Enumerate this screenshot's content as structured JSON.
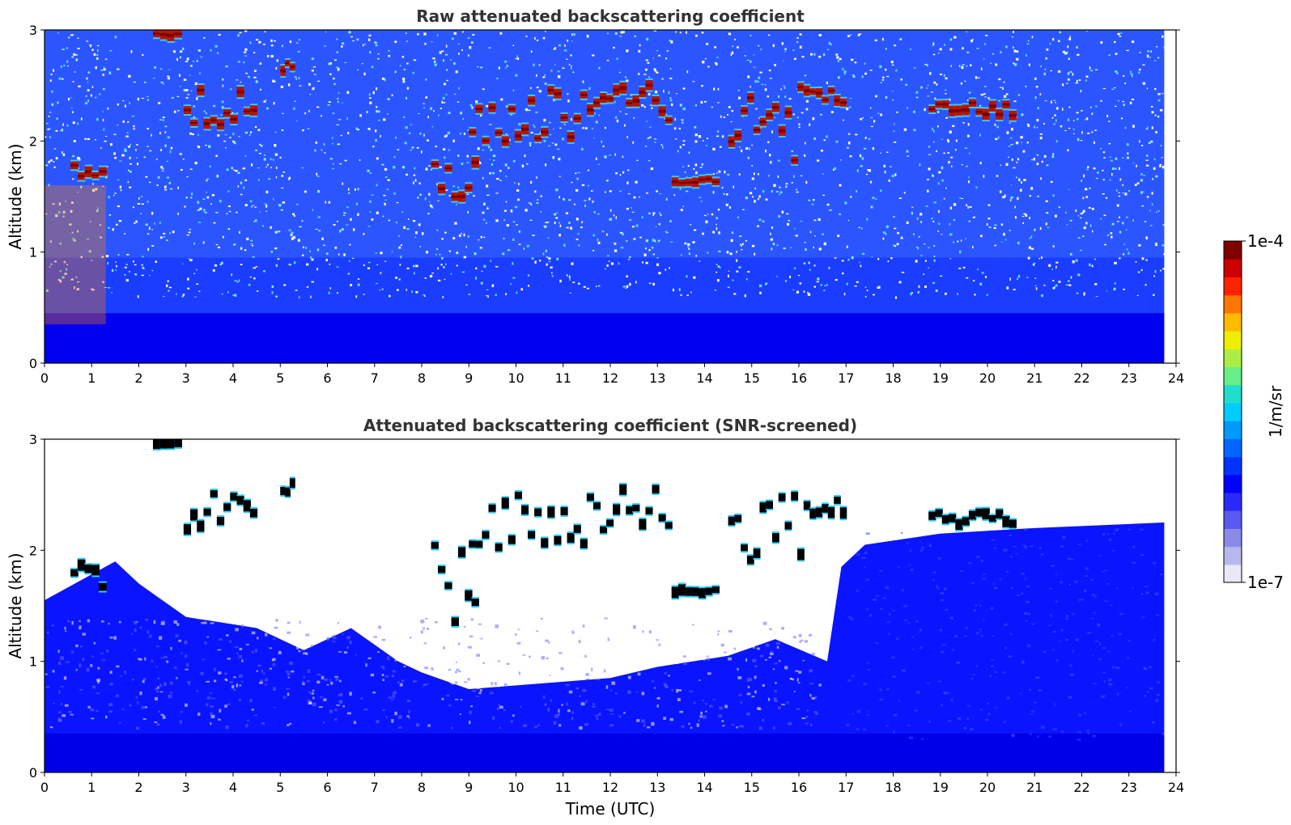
{
  "chart_data": [
    {
      "type": "heatmap",
      "title": "Raw attenuated backscattering coefficient",
      "xlabel": "",
      "ylabel": "Altitude (km)",
      "xlim": [
        0,
        24
      ],
      "ylim": [
        0,
        3
      ],
      "x_ticks": [
        "0",
        "1",
        "2",
        "3",
        "4",
        "5",
        "6",
        "7",
        "8",
        "9",
        "10",
        "11",
        "12",
        "13",
        "14",
        "15",
        "16",
        "17",
        "18",
        "19",
        "20",
        "21",
        "22",
        "23",
        "24"
      ],
      "y_ticks": [
        "0",
        "1",
        "2",
        "3"
      ],
      "data_end_time": 23.75,
      "dense_noise_top_km": 0.95,
      "features": [
        {
          "kind": "cloud",
          "t": [
            0.55,
            1.3
          ],
          "alt": [
            1.62,
            1.92
          ],
          "intensity": "high"
        },
        {
          "kind": "cloud",
          "t": [
            2.3,
            2.9
          ],
          "alt": [
            2.93,
            3.0
          ],
          "intensity": "high"
        },
        {
          "kind": "cloud",
          "t": [
            2.95,
            4.5
          ],
          "alt": [
            2.12,
            2.55
          ],
          "intensity": "high"
        },
        {
          "kind": "cloud",
          "t": [
            5.0,
            5.3
          ],
          "alt": [
            2.48,
            2.78
          ],
          "intensity": "high"
        },
        {
          "kind": "cloud",
          "t": [
            8.2,
            9.2
          ],
          "alt": [
            1.3,
            2.2
          ],
          "intensity": "high"
        },
        {
          "kind": "cloud",
          "t": [
            9.0,
            11.5
          ],
          "alt": [
            1.95,
            2.55
          ],
          "intensity": "high"
        },
        {
          "kind": "cloud",
          "t": [
            11.5,
            13.3
          ],
          "alt": [
            2.1,
            2.6
          ],
          "intensity": "high"
        },
        {
          "kind": "cloud",
          "t": [
            13.3,
            14.3
          ],
          "alt": [
            1.58,
            1.7
          ],
          "intensity": "high"
        },
        {
          "kind": "cloud",
          "t": [
            14.5,
            16.1
          ],
          "alt": [
            1.65,
            2.55
          ],
          "intensity": "high"
        },
        {
          "kind": "cloud",
          "t": [
            16.1,
            17.0
          ],
          "alt": [
            2.3,
            2.5
          ],
          "intensity": "high"
        },
        {
          "kind": "cloud",
          "t": [
            18.75,
            20.6
          ],
          "alt": [
            2.2,
            2.38
          ],
          "intensity": "high"
        },
        {
          "kind": "aerosol",
          "t": [
            0,
            1.3
          ],
          "alt": [
            0.35,
            1.6
          ],
          "intensity": "medium"
        }
      ]
    },
    {
      "type": "heatmap",
      "title": "Attenuated backscattering coefficient (SNR-screened)",
      "xlabel": "Time (UTC)",
      "ylabel": "Altitude (km)",
      "xlim": [
        0,
        24
      ],
      "ylim": [
        0,
        3
      ],
      "x_ticks": [
        "0",
        "1",
        "2",
        "3",
        "4",
        "5",
        "6",
        "7",
        "8",
        "9",
        "10",
        "11",
        "12",
        "13",
        "14",
        "15",
        "16",
        "17",
        "18",
        "19",
        "20",
        "21",
        "22",
        "23",
        "24"
      ],
      "y_ticks": [
        "0",
        "1",
        "2",
        "3"
      ],
      "data_end_time": 23.75,
      "screened_top_km": [
        [
          0,
          1.55
        ],
        [
          1.5,
          1.9
        ],
        [
          2.0,
          1.7
        ],
        [
          3.0,
          1.4
        ],
        [
          4.5,
          1.3
        ],
        [
          5.5,
          1.1
        ],
        [
          6.5,
          1.3
        ],
        [
          7.5,
          1.0
        ],
        [
          8.0,
          0.9
        ],
        [
          9.0,
          0.75
        ],
        [
          10.5,
          0.8
        ],
        [
          12.0,
          0.85
        ],
        [
          13.0,
          0.95
        ],
        [
          14.5,
          1.05
        ],
        [
          15.5,
          1.2
        ],
        [
          16.6,
          1.0
        ],
        [
          16.9,
          1.85
        ],
        [
          17.4,
          2.05
        ],
        [
          19.0,
          2.15
        ],
        [
          21.0,
          2.2
        ],
        [
          23.75,
          2.25
        ]
      ],
      "features": [
        {
          "kind": "cloud",
          "t": [
            0.55,
            1.3
          ],
          "alt": [
            1.62,
            1.92
          ],
          "intensity": "saturated"
        },
        {
          "kind": "cloud",
          "t": [
            2.3,
            2.9
          ],
          "alt": [
            2.93,
            3.0
          ],
          "intensity": "saturated"
        },
        {
          "kind": "cloud",
          "t": [
            2.95,
            4.5
          ],
          "alt": [
            2.12,
            2.55
          ],
          "intensity": "saturated"
        },
        {
          "kind": "cloud",
          "t": [
            5.0,
            5.3
          ],
          "alt": [
            2.48,
            2.78
          ],
          "intensity": "saturated"
        },
        {
          "kind": "cloud",
          "t": [
            8.2,
            9.2
          ],
          "alt": [
            1.3,
            2.2
          ],
          "intensity": "saturated"
        },
        {
          "kind": "cloud",
          "t": [
            9.0,
            11.5
          ],
          "alt": [
            1.95,
            2.55
          ],
          "intensity": "saturated"
        },
        {
          "kind": "cloud",
          "t": [
            11.5,
            13.3
          ],
          "alt": [
            2.1,
            2.6
          ],
          "intensity": "saturated"
        },
        {
          "kind": "cloud",
          "t": [
            13.3,
            14.3
          ],
          "alt": [
            1.58,
            1.7
          ],
          "intensity": "saturated"
        },
        {
          "kind": "cloud",
          "t": [
            14.5,
            16.1
          ],
          "alt": [
            1.65,
            2.55
          ],
          "intensity": "saturated"
        },
        {
          "kind": "cloud",
          "t": [
            16.1,
            17.0
          ],
          "alt": [
            2.3,
            2.5
          ],
          "intensity": "saturated"
        },
        {
          "kind": "cloud",
          "t": [
            18.75,
            20.6
          ],
          "alt": [
            2.2,
            2.38
          ],
          "intensity": "saturated"
        }
      ]
    }
  ],
  "colorbar": {
    "max_label": "1e-4",
    "min_label": "1e-7",
    "label": "1/m/sr",
    "colors": [
      "#e8e8f8",
      "#b8b8ee",
      "#8a8ae8",
      "#5a5af0",
      "#2a2af8",
      "#0000ff",
      "#0033ff",
      "#0066ff",
      "#0099ff",
      "#00ccff",
      "#22ddcc",
      "#66ee88",
      "#aaee44",
      "#eeee00",
      "#ffbb00",
      "#ff7700",
      "#ff2200",
      "#cc0000",
      "#800000"
    ]
  },
  "colors": {
    "background": "#ffffff",
    "clear_air": "#0000ff",
    "noise_speckle": "#ffffff",
    "cloud_core": "#a01000",
    "saturated_core": "#000000"
  }
}
